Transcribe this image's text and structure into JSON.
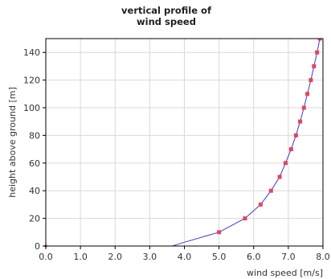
{
  "chart_data": {
    "type": "line",
    "title_lines": [
      "vertical profile of",
      "wind speed"
    ],
    "xlabel": "wind speed [m/s]",
    "ylabel": "height above ground [m]",
    "xlim": [
      0,
      8
    ],
    "ylim": [
      0,
      150
    ],
    "xticks": [
      0,
      1,
      2,
      3,
      4,
      5,
      6,
      7,
      8
    ],
    "xtick_labels": [
      "0.0",
      "1.0",
      "2.0",
      "3.0",
      "4.0",
      "5.0",
      "6.0",
      "7.0",
      "8.0"
    ],
    "yticks": [
      0,
      20,
      40,
      60,
      80,
      100,
      120,
      140
    ],
    "ytick_labels": [
      "0",
      "20",
      "40",
      "60",
      "80",
      "100",
      "120",
      "140"
    ],
    "grid": true,
    "series": [
      {
        "line_color": "#3a3ae0",
        "marker_color": "#e8435a",
        "x": [
          3.65,
          3.9,
          5.0,
          5.75,
          6.2,
          6.5,
          6.75,
          6.92,
          7.08,
          7.22,
          7.34,
          7.45,
          7.55,
          7.65,
          7.74,
          7.83,
          7.91,
          7.98
        ],
        "y": [
          0,
          2,
          10,
          20,
          30,
          40,
          50,
          60,
          70,
          80,
          90,
          100,
          110,
          120,
          130,
          140,
          150,
          160
        ],
        "markers": [
          false,
          false,
          true,
          true,
          true,
          true,
          true,
          true,
          true,
          true,
          true,
          true,
          true,
          true,
          true,
          true,
          true,
          false
        ]
      }
    ]
  }
}
